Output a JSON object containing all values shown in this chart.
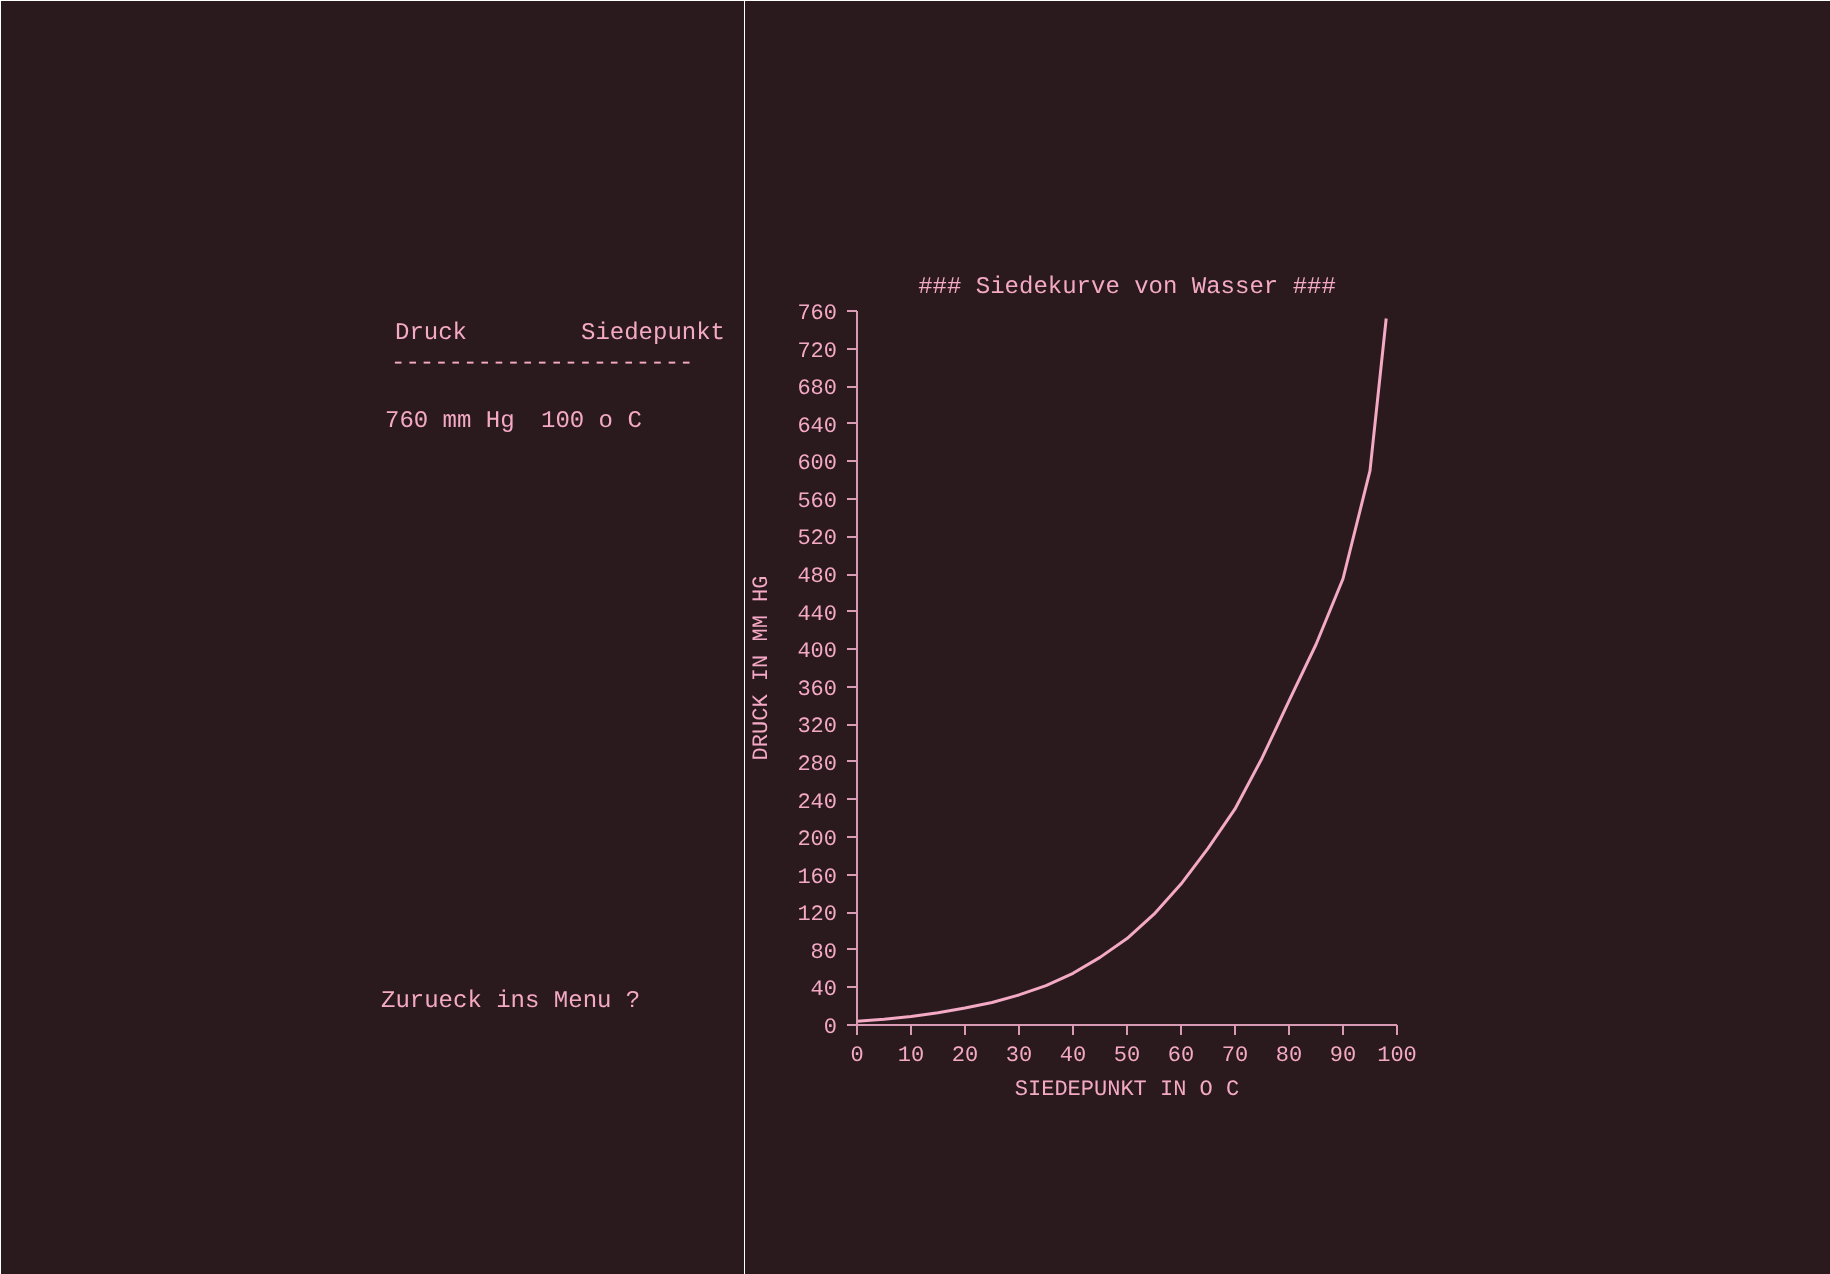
{
  "chart_data": {
    "type": "line",
    "title": "### Siedekurve von Wasser ###",
    "xlabel": "SIEDEPUNKT IN O C",
    "ylabel": "DRUCK IN MM HG",
    "x": [
      0,
      5,
      10,
      15,
      20,
      25,
      30,
      35,
      40,
      45,
      50,
      55,
      60,
      65,
      70,
      75,
      80,
      85,
      90,
      95,
      98
    ],
    "series": [
      {
        "color": "#f4a9c4",
        "values": [
          4,
          6,
          9,
          13,
          18,
          24,
          32,
          42,
          55,
          72,
          92,
          118,
          150,
          188,
          230,
          284,
          345,
          405,
          475,
          590,
          752
        ]
      }
    ],
    "xlim": [
      0,
      100
    ],
    "ylim": [
      0,
      760
    ],
    "xticks": [
      0,
      10,
      20,
      30,
      40,
      50,
      60,
      70,
      80,
      90,
      100
    ],
    "yticks": [
      0,
      40,
      80,
      120,
      160,
      200,
      240,
      280,
      320,
      360,
      400,
      440,
      480,
      520,
      560,
      600,
      640,
      680,
      720,
      760
    ],
    "grid": false,
    "marker": "none",
    "line_style": "solid",
    "annotations": [
      "Druck",
      "Siedepunkt",
      "---------------------",
      "760 mm Hg",
      "100 o C",
      "Zurueck ins Menu ?"
    ]
  }
}
